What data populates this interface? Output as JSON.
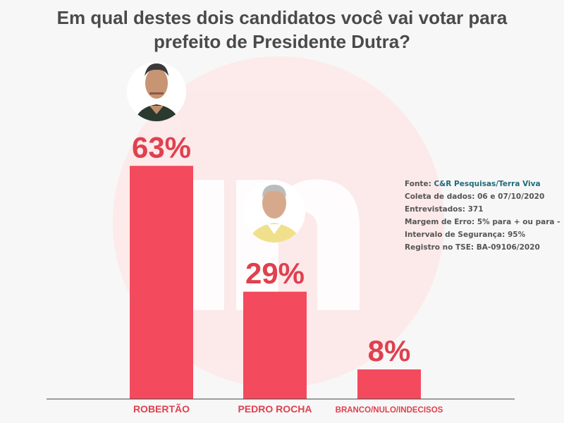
{
  "title": "Em qual destes dois candidatos você vai votar para prefeito de Presidente Dutra?",
  "colors": {
    "bar": "#f34a5e",
    "value_label": "#e0404f",
    "category_label": "#e0404f",
    "title": "#4a4a4a",
    "watermark": "#fde3e3"
  },
  "source": {
    "prefix": "Fonte: ",
    "org": "C&R Pesquisas/Terra Viva",
    "lines": [
      "Coleta de dados: 06 e 07/10/2020",
      "Entrevistados: 371",
      "Margem de Erro: 5% para + ou para -",
      "Intervalo de Segurança: 95%",
      "Registro no TSE: BA-09106/2020"
    ]
  },
  "chart_data": {
    "type": "bar",
    "categories": [
      "ROBERTÃO",
      "PEDRO ROCHA",
      "BRANCO/NULO/INDECISOS"
    ],
    "values": [
      63,
      29,
      8
    ],
    "value_labels": [
      "63%",
      "29%",
      "8%"
    ],
    "ylim": [
      0,
      100
    ],
    "grid": false,
    "legend": "none",
    "photos": [
      "candidate-photo-robertao",
      "candidate-photo-pedro-rocha"
    ]
  }
}
